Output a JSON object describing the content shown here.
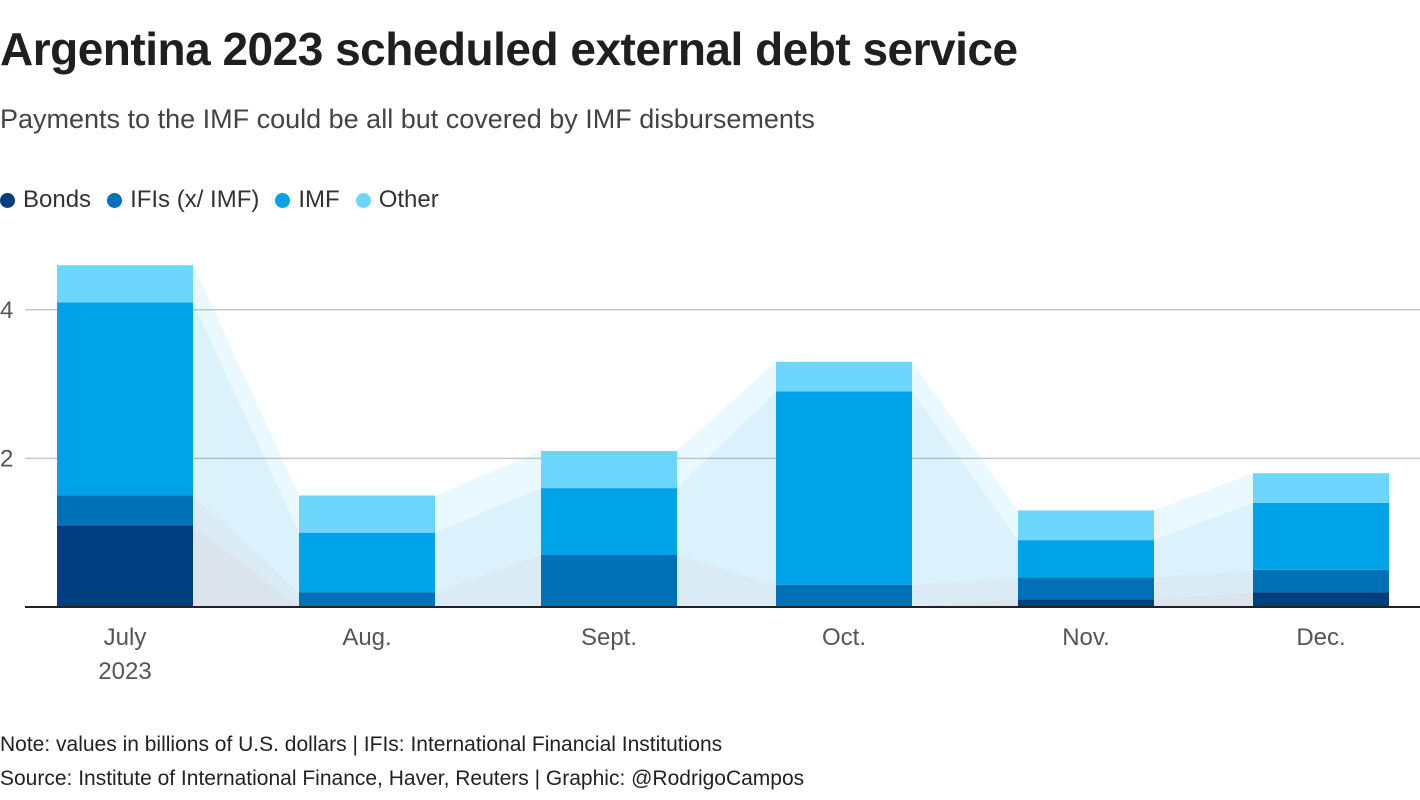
{
  "title": "Argentina 2023 scheduled external debt service",
  "subtitle": "Payments to the IMF could be all but covered by IMF disbursements",
  "legend": [
    {
      "label": "Bonds",
      "color": "#003f7f"
    },
    {
      "label": "IFIs (x/ IMF)",
      "color": "#0071b7"
    },
    {
      "label": "IMF",
      "color": "#00a2e8"
    },
    {
      "label": "Other",
      "color": "#6cd6fd"
    }
  ],
  "note": "Note: values in billions of U.S. dollars | IFIs: International Financial Institutions",
  "source": "Source: Institute of International Finance, Haver, Reuters | Graphic: @RodrigoCampos",
  "chart_data": {
    "type": "bar",
    "stacked": true,
    "categories": [
      "July",
      "Aug.",
      "Sept.",
      "Oct.",
      "Nov.",
      "Dec."
    ],
    "category_sublabels": [
      "2023",
      "",
      "",
      "",
      "",
      ""
    ],
    "series": [
      {
        "name": "Bonds",
        "color": "#003f7f",
        "values": [
          1.1,
          0.0,
          0.0,
          0.0,
          0.1,
          0.2
        ]
      },
      {
        "name": "IFIs (x/ IMF)",
        "color": "#0071b7",
        "values": [
          0.4,
          0.2,
          0.7,
          0.3,
          0.3,
          0.3
        ]
      },
      {
        "name": "IMF",
        "color": "#00a2e8",
        "values": [
          2.6,
          0.8,
          0.9,
          2.6,
          0.5,
          0.9
        ]
      },
      {
        "name": "Other",
        "color": "#6cd6fd",
        "values": [
          0.5,
          0.5,
          0.5,
          0.4,
          0.4,
          0.4
        ]
      }
    ],
    "yticks": [
      2,
      4
    ],
    "ylim": [
      0,
      4.7
    ],
    "grid": true,
    "legend_position": "top-left"
  }
}
